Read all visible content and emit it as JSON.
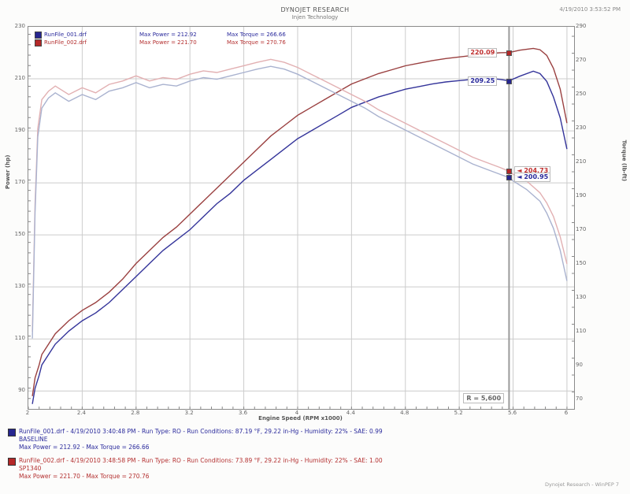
{
  "header": {
    "brand": "DYNOJET RESEARCH",
    "subtitle": "Injen Technology",
    "datetime": "4/19/2010 3:53:52 PM"
  },
  "footer": {
    "credit": "Dynojet Research - WinPEP 7"
  },
  "colors": {
    "power_blue": "#34349a",
    "power_red": "#9a4040",
    "torque_blue": "#a9b2cf",
    "torque_red": "#e2b0b2",
    "text_blue": "#2a2a9c",
    "text_red": "#c03030",
    "grid": "#cccccc",
    "cursor": "#9a9a9a",
    "marker_blue": "#26268f",
    "marker_red": "#b42828"
  },
  "legend": {
    "runs": [
      {
        "file": "RunFile_001.drf",
        "power": "Max Power = 212.92",
        "torque": "Max Torque = 266.66",
        "color": "blue"
      },
      {
        "file": "RunFile_002.drf",
        "power": "Max Power = 221.70",
        "torque": "Max Torque = 270.76",
        "color": "red"
      }
    ]
  },
  "summary": {
    "runs": [
      {
        "color": "blue",
        "line1": "RunFile_001.drf - 4/19/2010 3:40:48 PM - Run Type: RO - Run Conditions: 87.19 °F, 29.22 in-Hg - Humidity: 22% - SAE: 0.99",
        "line2": "BASELINE",
        "line3": "Max Power = 212.92 - Max Torque = 266.66"
      },
      {
        "color": "red",
        "line1": "RunFile_002.drf - 4/19/2010 3:48:58 PM - Run Type: RO - Run Conditions: 73.89 °F, 29.22 in-Hg - Humidity: 22% - SAE: 1.00",
        "line2": "SP1340",
        "line3": "Max Power = 221.70 - Max Torque = 270.76"
      }
    ]
  },
  "chart_data": {
    "type": "line",
    "title": "Dyno run comparison - power and torque vs engine speed",
    "xlabel": "Engine Speed (RPM x1000)",
    "ylabel_left": "Power (hp)",
    "ylabel_right": "Torque (lb-ft)",
    "xlim": [
      2.0,
      6.053
    ],
    "power_ylim_topdown": [
      230,
      83.1
    ],
    "torque_ylim_topdown": [
      290,
      64.4
    ],
    "x_ticks": [
      2,
      2.4,
      2.8,
      3.2,
      3.6,
      4,
      4.4,
      4.8,
      5.2,
      5.6,
      6
    ],
    "x_tick_labels": [
      "2",
      "2.4",
      "2.8",
      "3.2",
      "3.6",
      "4",
      "4.4",
      "4.8",
      "5.2",
      "5.6",
      "6"
    ],
    "power_ticks": [
      230,
      210,
      190,
      170,
      150,
      130,
      110,
      90
    ],
    "torque_ticks": [
      290,
      270,
      250,
      230,
      210,
      190,
      170,
      150,
      130,
      110,
      90,
      70
    ],
    "cursor_rpm": 5.57,
    "cursor_label": "R = 5,600",
    "legend_position": "top-left",
    "grid": true,
    "series": [
      {
        "name": "Power - RunFile_002 (Injen)",
        "axis": "power",
        "color_key": "power_red",
        "points": [
          [
            2.03,
            88
          ],
          [
            2.05,
            95
          ],
          [
            2.08,
            100
          ],
          [
            2.1,
            104
          ],
          [
            2.2,
            112
          ],
          [
            2.3,
            117
          ],
          [
            2.4,
            121
          ],
          [
            2.5,
            124
          ],
          [
            2.6,
            128
          ],
          [
            2.7,
            133
          ],
          [
            2.8,
            139
          ],
          [
            2.9,
            144
          ],
          [
            3.0,
            149
          ],
          [
            3.1,
            153
          ],
          [
            3.2,
            158
          ],
          [
            3.3,
            163
          ],
          [
            3.4,
            168
          ],
          [
            3.5,
            173
          ],
          [
            3.6,
            178
          ],
          [
            3.7,
            183
          ],
          [
            3.8,
            188
          ],
          [
            3.9,
            192
          ],
          [
            4.0,
            196
          ],
          [
            4.1,
            199
          ],
          [
            4.2,
            202
          ],
          [
            4.3,
            205
          ],
          [
            4.4,
            208
          ],
          [
            4.5,
            210
          ],
          [
            4.6,
            212
          ],
          [
            4.7,
            213.5
          ],
          [
            4.8,
            215
          ],
          [
            4.9,
            216
          ],
          [
            5.0,
            217
          ],
          [
            5.1,
            217.8
          ],
          [
            5.2,
            218.4
          ],
          [
            5.3,
            219
          ],
          [
            5.4,
            219.6
          ],
          [
            5.5,
            220.0
          ],
          [
            5.57,
            220.09
          ],
          [
            5.65,
            221.0
          ],
          [
            5.75,
            221.7
          ],
          [
            5.8,
            221.2
          ],
          [
            5.85,
            219
          ],
          [
            5.9,
            214
          ],
          [
            5.95,
            206
          ],
          [
            6.0,
            193
          ]
        ]
      },
      {
        "name": "Power - RunFile_001 (Baseline)",
        "axis": "power",
        "color_key": "power_blue",
        "points": [
          [
            2.03,
            85
          ],
          [
            2.05,
            91
          ],
          [
            2.08,
            96
          ],
          [
            2.1,
            100
          ],
          [
            2.2,
            108
          ],
          [
            2.3,
            113
          ],
          [
            2.4,
            117
          ],
          [
            2.5,
            120
          ],
          [
            2.6,
            124
          ],
          [
            2.7,
            129
          ],
          [
            2.8,
            134
          ],
          [
            2.9,
            139
          ],
          [
            3.0,
            144
          ],
          [
            3.1,
            148
          ],
          [
            3.2,
            152
          ],
          [
            3.3,
            157
          ],
          [
            3.4,
            162
          ],
          [
            3.5,
            166
          ],
          [
            3.6,
            171
          ],
          [
            3.7,
            175
          ],
          [
            3.8,
            179
          ],
          [
            3.9,
            183
          ],
          [
            4.0,
            187
          ],
          [
            4.1,
            190
          ],
          [
            4.2,
            193
          ],
          [
            4.3,
            196
          ],
          [
            4.4,
            199
          ],
          [
            4.5,
            201
          ],
          [
            4.6,
            203
          ],
          [
            4.7,
            204.5
          ],
          [
            4.8,
            206
          ],
          [
            4.9,
            207
          ],
          [
            5.0,
            208
          ],
          [
            5.1,
            208.8
          ],
          [
            5.2,
            209.3
          ],
          [
            5.3,
            209.8
          ],
          [
            5.4,
            210.3
          ],
          [
            5.5,
            209.8
          ],
          [
            5.57,
            209.25
          ],
          [
            5.65,
            211
          ],
          [
            5.75,
            212.92
          ],
          [
            5.8,
            212
          ],
          [
            5.85,
            209
          ],
          [
            5.9,
            203
          ],
          [
            5.95,
            195
          ],
          [
            6.0,
            183
          ]
        ]
      },
      {
        "name": "Torque - RunFile_002 (Injen)",
        "axis": "torque",
        "color_key": "torque_red",
        "points": [
          [
            2.03,
            110
          ],
          [
            2.05,
            185
          ],
          [
            2.07,
            230
          ],
          [
            2.1,
            247
          ],
          [
            2.15,
            252
          ],
          [
            2.2,
            255
          ],
          [
            2.3,
            250
          ],
          [
            2.4,
            254
          ],
          [
            2.5,
            251
          ],
          [
            2.6,
            256
          ],
          [
            2.7,
            258
          ],
          [
            2.8,
            261
          ],
          [
            2.9,
            258
          ],
          [
            3.0,
            260
          ],
          [
            3.1,
            259
          ],
          [
            3.2,
            262
          ],
          [
            3.3,
            264
          ],
          [
            3.4,
            263
          ],
          [
            3.5,
            265
          ],
          [
            3.6,
            267
          ],
          [
            3.7,
            269
          ],
          [
            3.8,
            270.8
          ],
          [
            3.9,
            269
          ],
          [
            4.0,
            266
          ],
          [
            4.1,
            262
          ],
          [
            4.2,
            258
          ],
          [
            4.3,
            254
          ],
          [
            4.4,
            250
          ],
          [
            4.5,
            246
          ],
          [
            4.6,
            241
          ],
          [
            4.7,
            237
          ],
          [
            4.8,
            233
          ],
          [
            4.9,
            229
          ],
          [
            5.0,
            225
          ],
          [
            5.1,
            221
          ],
          [
            5.2,
            217
          ],
          [
            5.3,
            213
          ],
          [
            5.4,
            210
          ],
          [
            5.5,
            207
          ],
          [
            5.57,
            204.73
          ],
          [
            5.6,
            203
          ],
          [
            5.7,
            199
          ],
          [
            5.8,
            192
          ],
          [
            5.85,
            186
          ],
          [
            5.9,
            178
          ],
          [
            5.95,
            166
          ],
          [
            6.0,
            150
          ]
        ]
      },
      {
        "name": "Torque - RunFile_001 (Baseline)",
        "axis": "torque",
        "color_key": "torque_blue",
        "points": [
          [
            2.03,
            106
          ],
          [
            2.05,
            180
          ],
          [
            2.07,
            225
          ],
          [
            2.1,
            242
          ],
          [
            2.15,
            248
          ],
          [
            2.2,
            251
          ],
          [
            2.3,
            246
          ],
          [
            2.4,
            250
          ],
          [
            2.5,
            247
          ],
          [
            2.6,
            252
          ],
          [
            2.7,
            254
          ],
          [
            2.8,
            257
          ],
          [
            2.9,
            254
          ],
          [
            3.0,
            256
          ],
          [
            3.1,
            255
          ],
          [
            3.2,
            258
          ],
          [
            3.3,
            260
          ],
          [
            3.4,
            259
          ],
          [
            3.5,
            261
          ],
          [
            3.6,
            263
          ],
          [
            3.7,
            265
          ],
          [
            3.8,
            266.66
          ],
          [
            3.9,
            265
          ],
          [
            4.0,
            262
          ],
          [
            4.1,
            258
          ],
          [
            4.2,
            254
          ],
          [
            4.3,
            250
          ],
          [
            4.4,
            246
          ],
          [
            4.5,
            242
          ],
          [
            4.6,
            237
          ],
          [
            4.7,
            233
          ],
          [
            4.8,
            229
          ],
          [
            4.9,
            225
          ],
          [
            5.0,
            221
          ],
          [
            5.1,
            217
          ],
          [
            5.2,
            213
          ],
          [
            5.3,
            209
          ],
          [
            5.4,
            206
          ],
          [
            5.5,
            203
          ],
          [
            5.57,
            200.95
          ],
          [
            5.6,
            199
          ],
          [
            5.7,
            194
          ],
          [
            5.8,
            187
          ],
          [
            5.85,
            180
          ],
          [
            5.9,
            171
          ],
          [
            5.95,
            158
          ],
          [
            6.0,
            140
          ]
        ]
      }
    ],
    "callouts": [
      {
        "label": "220.09",
        "axis": "power",
        "value": 220.09,
        "side": "left",
        "color": "red"
      },
      {
        "label": "209.25",
        "axis": "power",
        "value": 209.25,
        "side": "left",
        "color": "blue"
      },
      {
        "label": "204.73",
        "axis": "torque",
        "value": 204.73,
        "side": "right",
        "color": "red"
      },
      {
        "label": "200.95",
        "axis": "torque",
        "value": 200.95,
        "side": "right",
        "color": "blue"
      }
    ]
  }
}
